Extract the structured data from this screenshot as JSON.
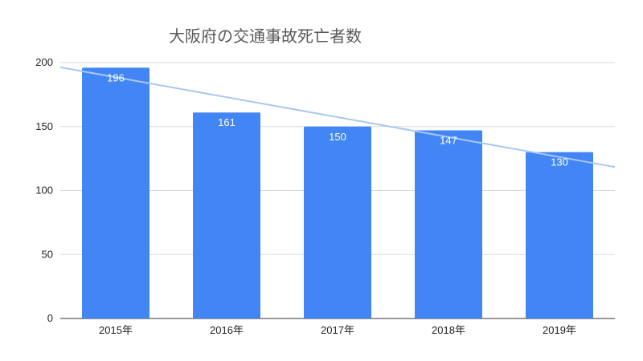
{
  "chart_data": {
    "type": "bar",
    "title": "大阪府の交通事故死亡者数",
    "xlabel": "",
    "ylabel": "",
    "categories": [
      "2015年",
      "2016年",
      "2017年",
      "2018年",
      "2019年"
    ],
    "values": [
      196,
      161,
      150,
      147,
      130
    ],
    "data_labels": [
      "196",
      "161",
      "150",
      "147",
      "130"
    ],
    "y_ticks": [
      0,
      50,
      100,
      150,
      200
    ],
    "y_tick_labels": [
      "0",
      "50",
      "100",
      "150",
      "200"
    ],
    "ylim": [
      0,
      200
    ],
    "grid": true,
    "legend": "none",
    "trendline": {
      "type": "linear",
      "start_value": 196.3,
      "end_value": 118.4
    },
    "colors": {
      "bar": "#4285f4",
      "trendline": "#a9c8f2",
      "data_label": "#ffffff",
      "grid": "#d9d9d9"
    }
  }
}
